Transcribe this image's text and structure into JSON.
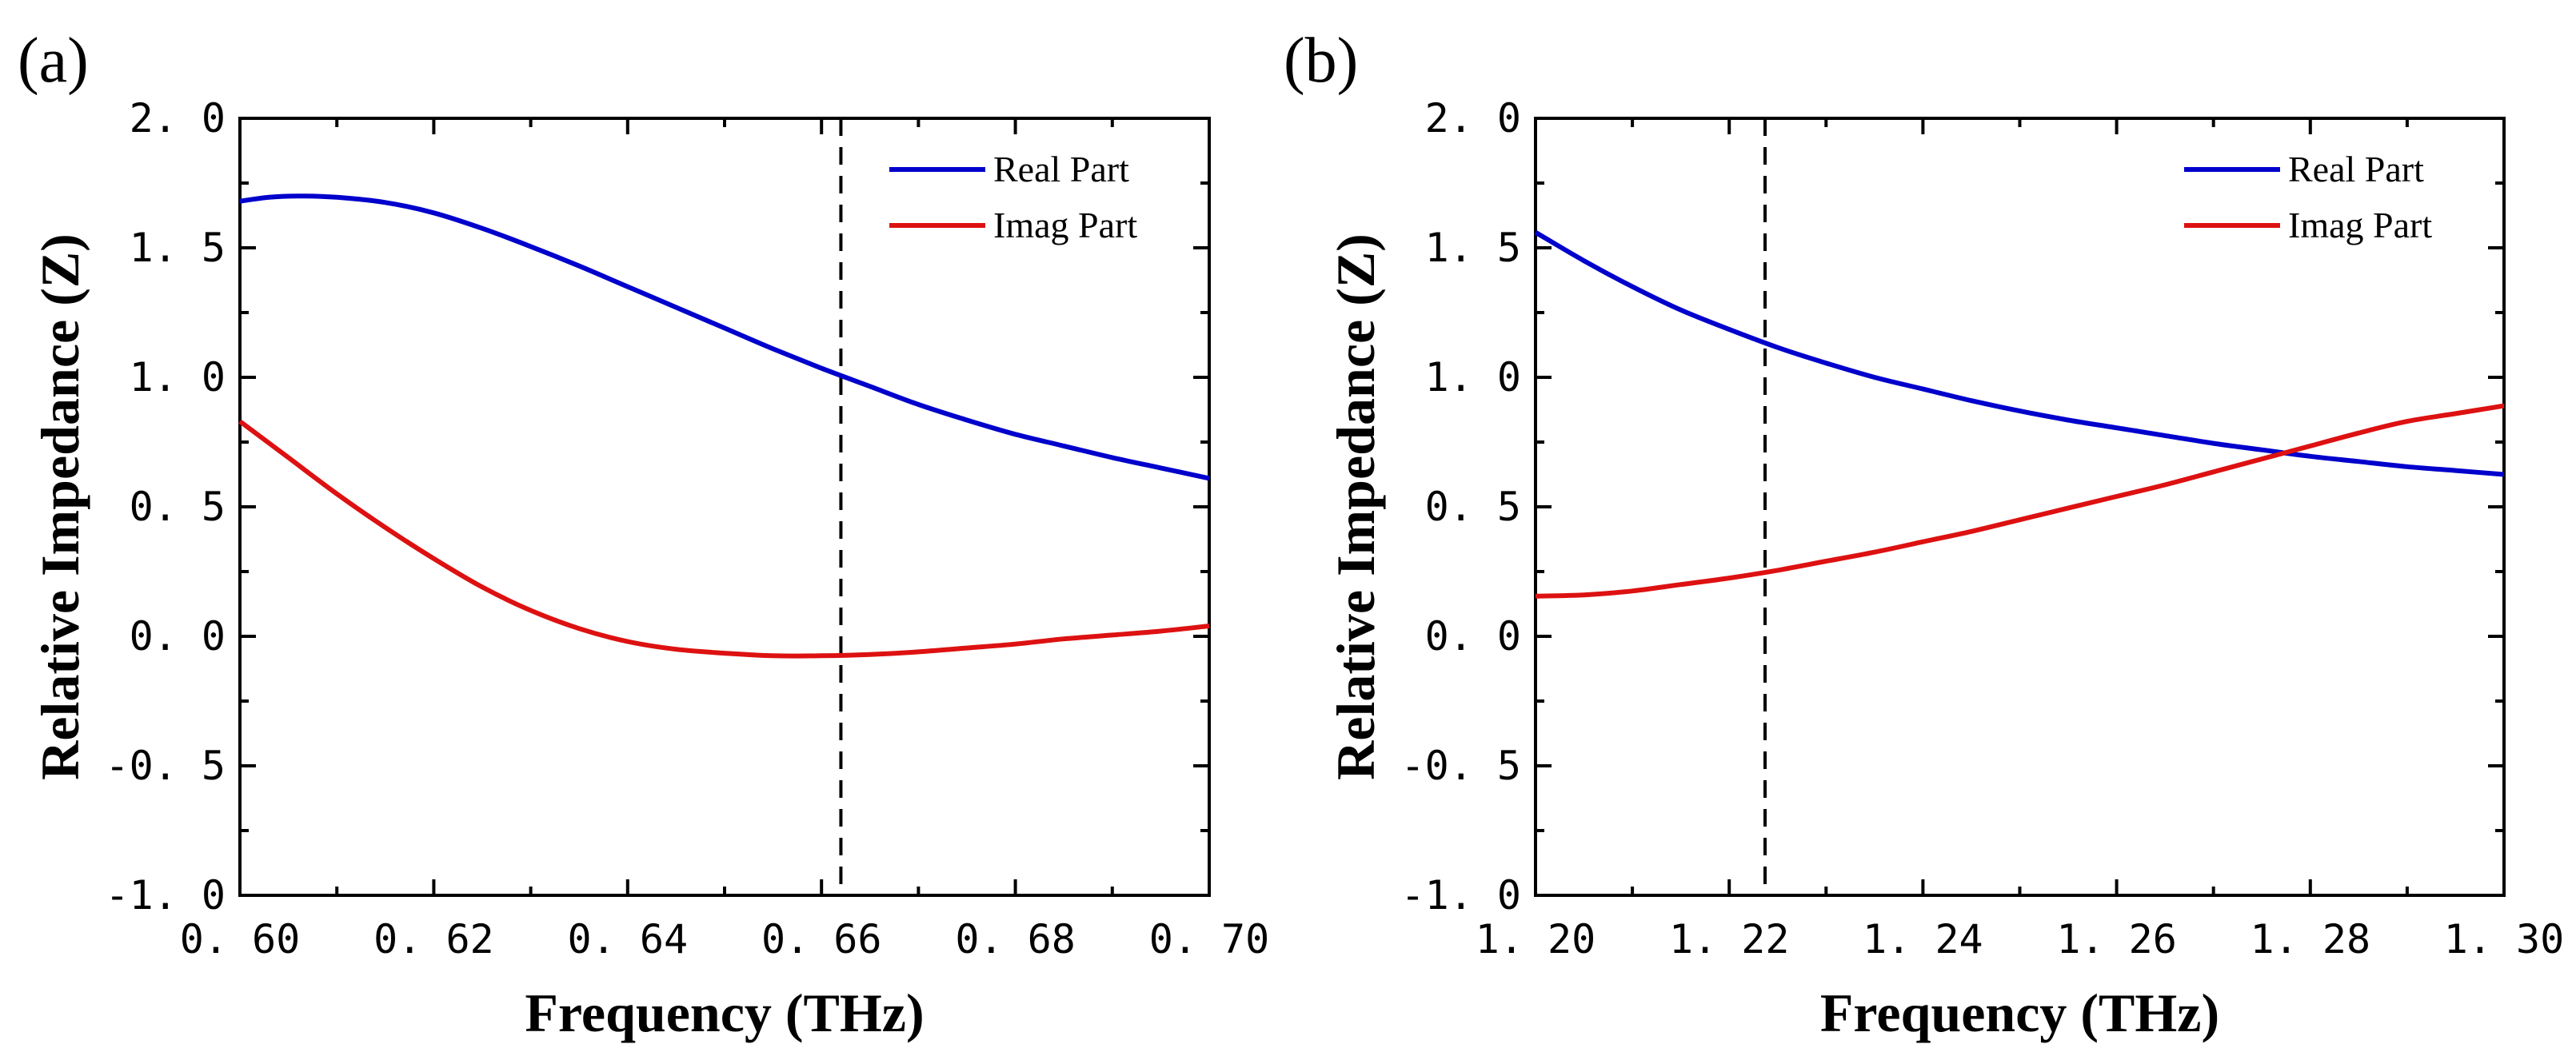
{
  "figure": {
    "panel_labels": [
      "(a)",
      "(b)"
    ]
  },
  "chart_data": [
    {
      "type": "line",
      "panel": "(a)",
      "xlabel": "Frequency (THz)",
      "ylabel": "Relative Impedance (Z)",
      "xlim": [
        0.6,
        0.7
      ],
      "ylim": [
        -1.0,
        2.0
      ],
      "xticks": [
        0.6,
        0.62,
        0.64,
        0.66,
        0.68,
        0.7
      ],
      "xtick_labels": [
        "0. 60",
        "0. 62",
        "0. 64",
        "0. 66",
        "0. 68",
        "0. 70"
      ],
      "yticks": [
        -1.0,
        -0.5,
        0.0,
        0.5,
        1.0,
        1.5,
        2.0
      ],
      "ytick_labels": [
        "-1. 0",
        "-0. 5",
        "0. 0",
        "0. 5",
        "1. 0",
        "1. 5",
        "2. 0"
      ],
      "vline_x": 0.662,
      "legend_position": "top-right",
      "series": [
        {
          "name": "Real Part",
          "color": "#0000cc",
          "x": [
            0.6,
            0.603,
            0.606,
            0.61,
            0.615,
            0.62,
            0.625,
            0.63,
            0.635,
            0.64,
            0.645,
            0.65,
            0.655,
            0.66,
            0.665,
            0.67,
            0.675,
            0.68,
            0.685,
            0.69,
            0.695,
            0.7
          ],
          "y": [
            1.68,
            1.695,
            1.7,
            1.695,
            1.675,
            1.635,
            1.575,
            1.505,
            1.43,
            1.35,
            1.27,
            1.19,
            1.11,
            1.035,
            0.965,
            0.895,
            0.835,
            0.78,
            0.735,
            0.69,
            0.65,
            0.61
          ]
        },
        {
          "name": "Imag Part",
          "color": "#dd1111",
          "x": [
            0.6,
            0.605,
            0.61,
            0.615,
            0.62,
            0.625,
            0.63,
            0.635,
            0.64,
            0.645,
            0.65,
            0.655,
            0.66,
            0.665,
            0.67,
            0.675,
            0.68,
            0.685,
            0.69,
            0.695,
            0.7
          ],
          "y": [
            0.83,
            0.69,
            0.55,
            0.42,
            0.3,
            0.19,
            0.1,
            0.03,
            -0.02,
            -0.05,
            -0.065,
            -0.075,
            -0.075,
            -0.07,
            -0.06,
            -0.045,
            -0.03,
            -0.01,
            0.005,
            0.02,
            0.04
          ]
        }
      ]
    },
    {
      "type": "line",
      "panel": "(b)",
      "xlabel": "Frequency (THz)",
      "ylabel": "Relative Impedance (Z)",
      "xlim": [
        1.2,
        1.3
      ],
      "ylim": [
        -1.0,
        2.0
      ],
      "xticks": [
        1.2,
        1.22,
        1.24,
        1.26,
        1.28,
        1.3
      ],
      "xtick_labels": [
        "1. 20",
        "1. 22",
        "1. 24",
        "1. 26",
        "1. 28",
        "1. 30"
      ],
      "yticks": [
        -1.0,
        -0.5,
        0.0,
        0.5,
        1.0,
        1.5,
        2.0
      ],
      "ytick_labels": [
        "-1. 0",
        "-0. 5",
        "0. 0",
        "0. 5",
        "1. 0",
        "1. 5",
        "2. 0"
      ],
      "vline_x": 1.2237,
      "legend_position": "top-right",
      "series": [
        {
          "name": "Real Part",
          "color": "#0000cc",
          "x": [
            1.2,
            1.205,
            1.21,
            1.215,
            1.22,
            1.225,
            1.23,
            1.235,
            1.24,
            1.245,
            1.25,
            1.255,
            1.26,
            1.265,
            1.27,
            1.275,
            1.28,
            1.285,
            1.29,
            1.295,
            1.3
          ],
          "y": [
            1.56,
            1.45,
            1.35,
            1.26,
            1.185,
            1.115,
            1.055,
            1.0,
            0.955,
            0.91,
            0.87,
            0.835,
            0.805,
            0.775,
            0.745,
            0.72,
            0.695,
            0.675,
            0.655,
            0.64,
            0.625
          ]
        },
        {
          "name": "Imag Part",
          "color": "#dd1111",
          "x": [
            1.2,
            1.205,
            1.21,
            1.215,
            1.22,
            1.225,
            1.23,
            1.235,
            1.24,
            1.245,
            1.25,
            1.255,
            1.26,
            1.265,
            1.27,
            1.275,
            1.28,
            1.285,
            1.29,
            1.295,
            1.3
          ],
          "y": [
            0.155,
            0.16,
            0.175,
            0.2,
            0.225,
            0.255,
            0.29,
            0.325,
            0.365,
            0.405,
            0.45,
            0.495,
            0.54,
            0.585,
            0.635,
            0.685,
            0.735,
            0.785,
            0.83,
            0.86,
            0.89
          ]
        }
      ]
    }
  ]
}
